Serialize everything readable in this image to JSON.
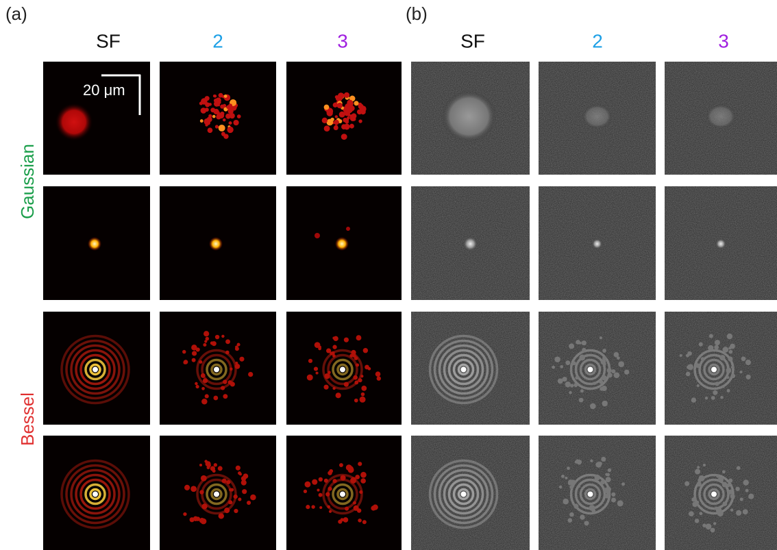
{
  "figure": {
    "panels": [
      {
        "label": "(a)",
        "columns": [
          "SF",
          "2",
          "3"
        ]
      },
      {
        "label": "(b)",
        "columns": [
          "SF",
          "2",
          "3"
        ]
      }
    ],
    "rows": [
      "Gaussian",
      "Bessel"
    ],
    "scale_bar": "20 μm"
  }
}
